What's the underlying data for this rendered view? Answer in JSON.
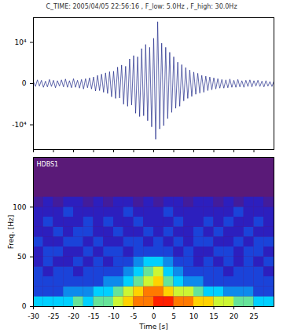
{
  "chart_data": [
    {
      "type": "line",
      "title": "C_TIME: 2005/04/05 22:56:16 , F_low: 5.0Hz , F_high: 30.0Hz",
      "x": [
        -30,
        -29.5,
        -29,
        -28.5,
        -28,
        -27.5,
        -27,
        -26.5,
        -26,
        -25.5,
        -25,
        -24.5,
        -24,
        -23.5,
        -23,
        -22.5,
        -22,
        -21.5,
        -21,
        -20.5,
        -20,
        -19.5,
        -19,
        -18.5,
        -18,
        -17.5,
        -17,
        -16.5,
        -16,
        -15.5,
        -15,
        -14.5,
        -14,
        -13.5,
        -13,
        -12.5,
        -12,
        -11.5,
        -11,
        -10.5,
        -10,
        -9.5,
        -9,
        -8.5,
        -8,
        -7.5,
        -7,
        -6.5,
        -6,
        -5.5,
        -5,
        -4.5,
        -4,
        -3.5,
        -3,
        -2.5,
        -2,
        -1.5,
        -1,
        -0.5,
        0,
        0.5,
        1,
        1.5,
        2,
        2.5,
        3,
        3.5,
        4,
        4.5,
        5,
        5.5,
        6,
        6.5,
        7,
        7.5,
        8,
        8.5,
        9,
        9.5,
        10,
        10.5,
        11,
        11.5,
        12,
        12.5,
        13,
        13.5,
        14,
        14.5,
        15,
        15.5,
        16,
        16.5,
        17,
        17.5,
        18,
        18.5,
        19,
        19.5,
        20,
        20.5,
        21,
        21.5,
        22,
        22.5,
        23,
        23.5,
        24,
        24.5,
        25,
        25.5,
        26,
        26.5,
        27,
        27.5,
        28,
        28.5,
        29,
        29.5,
        30
      ],
      "values": [
        500,
        -700,
        900,
        -600,
        800,
        -900,
        600,
        -800,
        1000,
        -700,
        800,
        -1000,
        700,
        -600,
        900,
        -800,
        1100,
        -900,
        700,
        -1000,
        1200,
        -900,
        800,
        -1100,
        1000,
        -1300,
        1200,
        -1000,
        1400,
        -1300,
        1600,
        -1800,
        2000,
        -1700,
        2300,
        -2100,
        2600,
        -2400,
        2900,
        -3200,
        3000,
        -3600,
        4000,
        -3500,
        4500,
        -5000,
        4200,
        -5500,
        6000,
        -5200,
        6800,
        -7200,
        6500,
        -8000,
        8500,
        -7800,
        9500,
        -9000,
        8800,
        -10500,
        11000,
        -13500,
        15000,
        -11000,
        9800,
        -10200,
        8800,
        -8500,
        7600,
        -7000,
        6500,
        -6000,
        5200,
        -5500,
        4600,
        -4200,
        3900,
        -3600,
        3300,
        -3100,
        2800,
        -2600,
        2500,
        -2300,
        2000,
        -2100,
        1800,
        -1700,
        1600,
        -1500,
        1400,
        -1300,
        1200,
        -1100,
        1000,
        -1100,
        900,
        -1000,
        1100,
        -900,
        800,
        -900,
        1000,
        -800,
        700,
        -900,
        800,
        -700,
        900,
        -800,
        700,
        -600,
        800,
        -700,
        600,
        -800,
        700,
        -600,
        500,
        -700,
        600
      ],
      "color": "#1f2a8a",
      "xlim": [
        -30,
        30
      ],
      "xticks": [
        -30,
        -25,
        -20,
        -15,
        -10,
        -5,
        0,
        5,
        10,
        15,
        20,
        25
      ],
      "ylim": [
        -16000,
        16000
      ],
      "yticks": [
        {
          "value": 10000,
          "label": "10⁴"
        },
        0,
        {
          "value": -10000,
          "label": "-10⁴"
        }
      ],
      "tick_labels": "y",
      "grid": false
    },
    {
      "type": "heatmap",
      "annotation": "HDBS1",
      "x_label": "Time [s]",
      "y_label": "Freq. [Hz]",
      "x_bins": [
        -30,
        -27.5,
        -25,
        -22.5,
        -20,
        -17.5,
        -15,
        -12.5,
        -10,
        -7.5,
        -5,
        -2.5,
        0,
        2.5,
        5,
        7.5,
        10,
        12.5,
        15,
        17.5,
        20,
        22.5,
        25,
        27.5,
        30
      ],
      "y_bins": [
        0,
        10,
        20,
        30,
        40,
        50,
        60,
        70,
        80,
        90,
        100,
        110
      ],
      "cells": [
        [
          5,
          5,
          5,
          5,
          6,
          5,
          6,
          6,
          7,
          8,
          9,
          9,
          10,
          10,
          9,
          9,
          8,
          8,
          7,
          7,
          6,
          6,
          5,
          5
        ],
        [
          3,
          3,
          3,
          4,
          4,
          4,
          5,
          5,
          6,
          7,
          8,
          9,
          9,
          8,
          7,
          7,
          6,
          5,
          5,
          4,
          4,
          4,
          3,
          3
        ],
        [
          3,
          3,
          3,
          3,
          3,
          3,
          3,
          4,
          4,
          5,
          6,
          7,
          8,
          6,
          5,
          4,
          4,
          3,
          3,
          3,
          3,
          3,
          3,
          3
        ],
        [
          3,
          2,
          3,
          3,
          2,
          3,
          3,
          3,
          3,
          4,
          5,
          6,
          7,
          5,
          4,
          3,
          3,
          3,
          3,
          2,
          3,
          3,
          3,
          2
        ],
        [
          2,
          3,
          2,
          2,
          3,
          2,
          3,
          2,
          3,
          3,
          4,
          5,
          5,
          4,
          3,
          3,
          2,
          3,
          2,
          3,
          2,
          3,
          2,
          3
        ],
        [
          2,
          3,
          3,
          2,
          2,
          3,
          2,
          3,
          3,
          2,
          3,
          3,
          3,
          3,
          2,
          3,
          2,
          2,
          3,
          3,
          2,
          3,
          3,
          2
        ],
        [
          3,
          2,
          2,
          3,
          3,
          2,
          3,
          2,
          2,
          3,
          3,
          2,
          3,
          2,
          3,
          2,
          3,
          3,
          2,
          2,
          3,
          2,
          3,
          3
        ],
        [
          2,
          2,
          3,
          2,
          3,
          3,
          2,
          2,
          3,
          2,
          2,
          3,
          2,
          3,
          2,
          2,
          3,
          2,
          3,
          2,
          2,
          3,
          2,
          2
        ],
        [
          2,
          3,
          2,
          2,
          2,
          3,
          2,
          3,
          2,
          2,
          3,
          2,
          2,
          2,
          3,
          2,
          2,
          3,
          2,
          3,
          2,
          2,
          3,
          2
        ],
        [
          2,
          2,
          2,
          3,
          2,
          2,
          2,
          2,
          2,
          3,
          2,
          2,
          2,
          3,
          2,
          2,
          2,
          2,
          2,
          2,
          3,
          2,
          2,
          2
        ],
        [
          1,
          2,
          1,
          2,
          2,
          1,
          2,
          1,
          2,
          2,
          1,
          2,
          1,
          2,
          2,
          1,
          2,
          2,
          1,
          2,
          1,
          2,
          2,
          1
        ]
      ],
      "zlim": [
        0,
        10
      ],
      "colors": [
        "#5a1a78",
        "#2020d0",
        "#00d0ff",
        "#ffff00",
        "#ff2000"
      ],
      "xlim": [
        -30,
        30
      ],
      "xticks": [
        -30,
        -25,
        -20,
        -15,
        -10,
        -5,
        0,
        5,
        10,
        15,
        20,
        25
      ],
      "ylim": [
        0,
        150
      ],
      "yticks": [
        0,
        50,
        100
      ],
      "grid": false
    }
  ]
}
